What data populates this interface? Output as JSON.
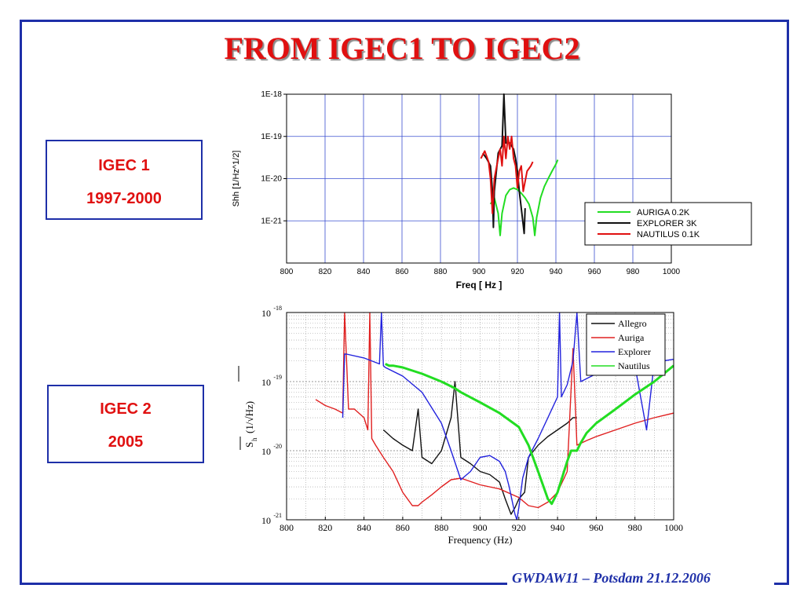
{
  "slide": {
    "title": "FROM IGEC1 TO IGEC2",
    "footer": "GWDAW11 – Potsdam 21.12.2006",
    "box1": {
      "line1": "IGEC 1",
      "line2": "1997-2000"
    },
    "box2": {
      "line1": "IGEC 2",
      "line2": "2005"
    },
    "colors": {
      "title": "#e01010",
      "frame": "#1e2fa8",
      "box_text": "#e01010"
    }
  },
  "chart_data": [
    {
      "type": "line",
      "xlabel": "Freq [ Hz ]",
      "ylabel": "Shh [1/Hz^1/2]",
      "xlim": [
        800,
        1000
      ],
      "ylim": [
        1e-22,
        1e-18
      ],
      "yscale": "log",
      "x_ticks": [
        "800",
        "820",
        "840",
        "860",
        "880",
        "900",
        "920",
        "940",
        "960",
        "980",
        "1000"
      ],
      "y_ticks": [
        "1E-18",
        "1E-19",
        "1E-20",
        "1E-21"
      ],
      "grid": true,
      "legend": "bottom-right",
      "series": [
        {
          "name": "AURIGA 0.2K",
          "color": "#22dd22",
          "x": [
            906,
            908,
            910,
            911,
            912,
            914,
            916,
            918,
            920,
            922,
            924,
            926,
            928,
            929,
            930,
            932,
            934,
            936,
            938,
            940,
            941
          ],
          "y": [
            2.5e-21,
            3.5e-21,
            1.5e-21,
            4.5e-22,
            1.5e-21,
            4e-21,
            5.5e-21,
            6e-21,
            5.5e-21,
            4.5e-21,
            3.5e-21,
            2.5e-21,
            1.2e-21,
            4.5e-22,
            1.2e-21,
            3.5e-21,
            6.5e-21,
            1e-20,
            1.5e-20,
            2.2e-20,
            2.8e-20
          ]
        },
        {
          "name": "EXPLORER 3K",
          "color": "#111111",
          "x": [
            902,
            904,
            906,
            907,
            907.5,
            908,
            910,
            912,
            913,
            914,
            916,
            918,
            919,
            920,
            921,
            922,
            923,
            923.5,
            924
          ],
          "y": [
            4e-20,
            3e-20,
            2e-20,
            5e-21,
            7e-22,
            5e-21,
            4e-20,
            6e-20,
            1e-18,
            7e-20,
            7e-20,
            5e-20,
            3e-20,
            1.5e-20,
            5e-21,
            2e-21,
            8e-22,
            5e-22,
            2e-21
          ]
        },
        {
          "name": "NAUTILUS 0.1K",
          "color": "#e01010",
          "x": [
            901,
            903,
            905,
            906,
            907,
            908,
            910,
            911,
            912,
            913,
            914,
            915,
            916,
            917,
            918,
            919,
            920,
            921,
            922,
            923,
            925,
            927,
            928
          ],
          "y": [
            3e-20,
            4.5e-20,
            2.5e-20,
            1e-20,
            1.5e-21,
            1e-20,
            3e-20,
            5e-20,
            2e-20,
            1e-19,
            3e-20,
            1e-19,
            5e-20,
            1e-19,
            3e-20,
            2e-20,
            6e-21,
            1.5e-20,
            2e-20,
            5e-21,
            1.5e-20,
            2e-20,
            2.5e-20
          ]
        }
      ]
    },
    {
      "type": "line",
      "xlabel": "Frequency (Hz)",
      "ylabel_main": "S",
      "ylabel_sub": "h",
      "ylabel_unit": "(1/√Hz)",
      "xlim": [
        800,
        1000
      ],
      "ylim": [
        1e-21,
        1e-18
      ],
      "yscale": "log",
      "x_ticks": [
        "800",
        "820",
        "840",
        "860",
        "880",
        "900",
        "920",
        "940",
        "960",
        "980",
        "1000"
      ],
      "y_ticks": [
        {
          "base": "10",
          "exp": "-18"
        },
        {
          "base": "10",
          "exp": "-19"
        },
        {
          "base": "10",
          "exp": "-20"
        },
        {
          "base": "10",
          "exp": "-21"
        }
      ],
      "grid": true,
      "legend": "top-right",
      "series": [
        {
          "name": "Allegro",
          "color": "#111111",
          "x": [
            850,
            855,
            860,
            865,
            868,
            870,
            875,
            880,
            885,
            887,
            890,
            895,
            900,
            905,
            910,
            913,
            916,
            918,
            920,
            923,
            925,
            930,
            935,
            940,
            945,
            948,
            950
          ],
          "y": [
            2e-20,
            1.5e-20,
            1.2e-20,
            1e-20,
            4e-20,
            8e-21,
            6.5e-21,
            1e-20,
            3e-20,
            1e-19,
            8e-21,
            6.5e-21,
            5e-21,
            4.5e-21,
            3.5e-21,
            2e-21,
            1.2e-21,
            1.5e-21,
            2e-21,
            2.5e-21,
            8e-21,
            1.2e-20,
            1.6e-20,
            2e-20,
            2.5e-20,
            3e-20,
            3e-20
          ]
        },
        {
          "name": "Auriga",
          "color": "#e02020",
          "x": [
            815,
            820,
            825,
            829,
            830,
            832,
            835,
            840,
            842,
            843,
            844,
            846,
            850,
            855,
            860,
            865,
            868,
            870,
            875,
            880,
            885,
            890,
            900,
            910,
            920,
            925,
            930,
            935,
            940,
            945,
            948,
            950,
            955,
            960,
            970,
            980,
            990,
            1000
          ],
          "y": [
            5.5e-20,
            4.5e-20,
            4e-20,
            3.5e-20,
            1e-18,
            4e-20,
            4e-20,
            3e-20,
            2e-20,
            1e-18,
            1.5e-20,
            1.2e-20,
            8e-21,
            5e-21,
            2.5e-21,
            1.6e-21,
            1.6e-21,
            1.8e-21,
            2.3e-21,
            3e-21,
            3.8e-21,
            4e-21,
            3.2e-21,
            2.8e-21,
            2.1e-21,
            1.6e-21,
            1.5e-21,
            1.8e-21,
            2.5e-21,
            5e-21,
            3e-19,
            1.2e-20,
            1.4e-20,
            1.6e-20,
            2e-20,
            2.5e-20,
            3e-20,
            3.5e-20
          ]
        },
        {
          "name": "Explorer",
          "color": "#2222dd",
          "x": [
            829,
            830,
            831,
            840,
            848,
            849,
            850,
            851,
            860,
            870,
            880,
            885,
            890,
            895,
            900,
            905,
            910,
            913,
            915,
            918,
            919,
            920,
            922,
            925,
            930,
            935,
            940,
            941,
            942,
            945,
            948,
            950,
            952,
            960,
            970,
            980,
            986,
            990,
            1000
          ],
          "y": [
            3e-20,
            2.5e-19,
            2.5e-19,
            2.2e-19,
            1.8e-19,
            1e-18,
            1.7e-19,
            1.6e-19,
            1.2e-19,
            7e-20,
            2.5e-20,
            1e-20,
            3.8e-21,
            5e-21,
            8e-21,
            8.5e-21,
            7e-21,
            5e-21,
            3e-21,
            1.2e-21,
            1e-21,
            1.5e-21,
            4e-21,
            8e-21,
            1.5e-20,
            3e-20,
            6e-20,
            1e-18,
            6e-20,
            9e-20,
            2e-19,
            1e-18,
            1e-19,
            1.3e-19,
            1.5e-19,
            1.7e-19,
            2e-20,
            1.9e-19,
            2.1e-19
          ]
        },
        {
          "name": "Nautilus",
          "color": "#22dd22",
          "x": [
            851,
            853,
            855,
            860,
            870,
            880,
            887,
            890,
            900,
            910,
            920,
            925,
            930,
            935,
            937,
            940,
            945,
            947,
            950,
            952,
            955,
            960,
            970,
            980,
            990,
            1000
          ],
          "y": [
            1.8e-19,
            1.7e-19,
            1.7e-19,
            1.6e-19,
            1.3e-19,
            1e-19,
            8e-20,
            7e-20,
            5e-20,
            3.5e-20,
            2.2e-20,
            1.2e-20,
            5e-21,
            2e-21,
            1.7e-21,
            2.5e-21,
            7e-21,
            1e-20,
            1e-20,
            1.3e-20,
            1.8e-20,
            2.5e-20,
            4e-20,
            6.5e-20,
            1e-19,
            1.7e-19
          ]
        }
      ]
    }
  ]
}
